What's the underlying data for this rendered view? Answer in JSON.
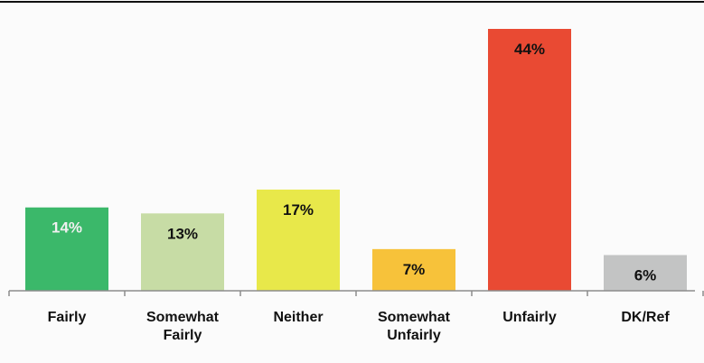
{
  "chart_data": {
    "type": "bar",
    "categories": [
      "Fairly",
      "Somewhat Fairly",
      "Neither",
      "Somewhat Unfairly",
      "Unfairly",
      "DK/Ref"
    ],
    "values": [
      14,
      13,
      17,
      7,
      44,
      6
    ],
    "data_labels": [
      "14%",
      "13%",
      "17%",
      "7%",
      "44%",
      "6%"
    ],
    "colors": [
      "#3bb86a",
      "#c7dca5",
      "#e8e84a",
      "#f7c23a",
      "#e94a33",
      "#c3c4c4"
    ],
    "label_colors": [
      "#f0f0f0",
      "#111111",
      "#111111",
      "#111111",
      "#111111",
      "#111111"
    ],
    "ylim": [
      0,
      44
    ],
    "grid": false,
    "legend": "none",
    "title": "",
    "xlabel": "",
    "ylabel": ""
  }
}
